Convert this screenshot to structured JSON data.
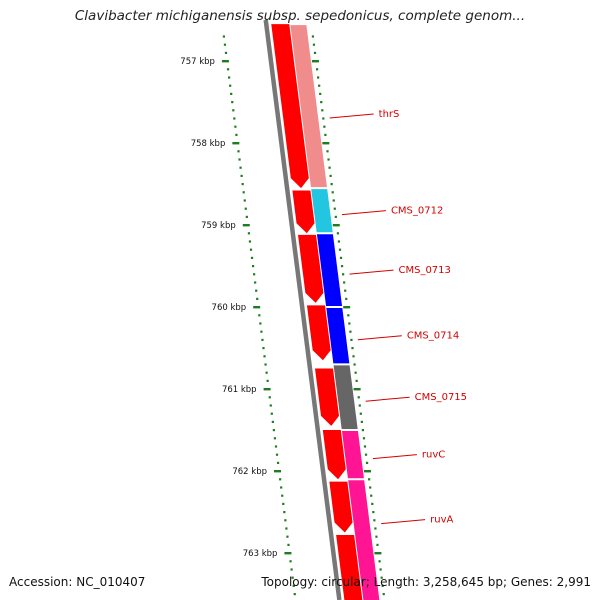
{
  "title": "Clavibacter michiganensis subsp. sepedonicus, complete genom...",
  "footer": {
    "accession": "Accession: NC_010407",
    "topology": "Topology: circular; Length: 3,258,645 bp; Genes: 2,991"
  },
  "scale_ticks": [
    "757 kbp",
    "758 kbp",
    "759 kbp",
    "760 kbp",
    "761 kbp",
    "762 kbp",
    "763 kbp"
  ],
  "colors": {
    "backbone": "#777777",
    "cds": "#ff0000",
    "tick": "#1e7d1e",
    "label": "#d40000",
    "thrS": "#f08c8c",
    "CMS_0712": "#22c6e0",
    "CMS_0713": "#0000ff",
    "CMS_0714": "#0000ff",
    "CMS_0715": "#666666",
    "ruvC": "#ff1493",
    "ruvA": "#ff1493"
  },
  "genes": [
    {
      "name": "thrS",
      "start_kbp": 756.55,
      "end_kbp": 758.55,
      "color": "#f08c8c"
    },
    {
      "name": "CMS_0712",
      "start_kbp": 758.55,
      "end_kbp": 759.1,
      "color": "#22c6e0"
    },
    {
      "name": "CMS_0713",
      "start_kbp": 759.1,
      "end_kbp": 760.0,
      "color": "#0000ff"
    },
    {
      "name": "CMS_0714",
      "start_kbp": 760.0,
      "end_kbp": 760.7,
      "color": "#0000ff"
    },
    {
      "name": "CMS_0715",
      "start_kbp": 760.7,
      "end_kbp": 761.5,
      "color": "#666666"
    },
    {
      "name": "ruvC",
      "start_kbp": 761.5,
      "end_kbp": 762.1,
      "color": "#ff1493"
    },
    {
      "name": "ruvA",
      "start_kbp": 762.1,
      "end_kbp": 763.6,
      "color": "#ff1493"
    }
  ],
  "cds_blocks": [
    {
      "start_kbp": 756.55,
      "end_kbp": 758.55
    },
    {
      "start_kbp": 758.58,
      "end_kbp": 759.1
    },
    {
      "start_kbp": 759.12,
      "end_kbp": 759.95
    },
    {
      "start_kbp": 759.98,
      "end_kbp": 760.65
    },
    {
      "start_kbp": 760.75,
      "end_kbp": 761.45
    },
    {
      "start_kbp": 761.5,
      "end_kbp": 762.1
    },
    {
      "start_kbp": 762.13,
      "end_kbp": 762.75
    },
    {
      "start_kbp": 762.78,
      "end_kbp": 763.6
    }
  ]
}
